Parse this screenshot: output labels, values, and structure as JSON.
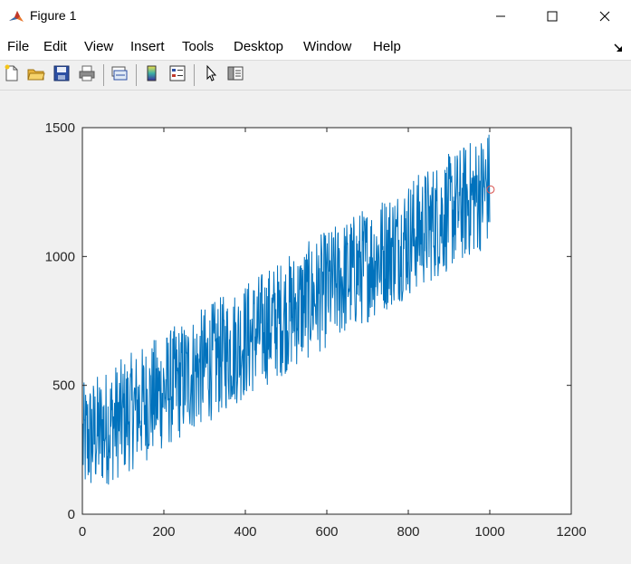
{
  "window": {
    "title": "Figure 1",
    "icon": "matlab-logo-icon",
    "controls": [
      "minimize-icon",
      "maximize-icon",
      "close-icon"
    ]
  },
  "menu": {
    "items": [
      "File",
      "Edit",
      "View",
      "Insert",
      "Tools",
      "Desktop",
      "Window",
      "Help"
    ]
  },
  "toolbar": {
    "buttons": [
      "new-figure-icon",
      "open-file-icon",
      "save-figure-icon",
      "print-figure-icon",
      "link-plot-icon",
      "insert-colorbar-icon",
      "insert-legend-icon",
      "edit-plot-arrow-icon",
      "show-plot-tools-icon"
    ]
  },
  "chart_data": {
    "type": "line",
    "title": "",
    "xlabel": "",
    "ylabel": "",
    "xlim": [
      0,
      1200
    ],
    "ylim": [
      0,
      1500
    ],
    "xticks": [
      "0",
      "200",
      "400",
      "600",
      "800",
      "1000",
      "1200"
    ],
    "yticks": [
      "0",
      "500",
      "1000",
      "1500"
    ],
    "grid": false,
    "legend": "none",
    "series": [
      {
        "style": "line",
        "color": "#0072bd",
        "n_points": 1000,
        "x_range": [
          1,
          1000
        ],
        "trend": {
          "start": 280,
          "end": 1270
        },
        "noise_amplitude": 230,
        "y_min_observed": 50,
        "y_max_observed": 1480
      },
      {
        "style": "marker-circle",
        "color": "#d9534f",
        "x": [
          1002
        ],
        "y": [
          1260
        ]
      }
    ]
  }
}
